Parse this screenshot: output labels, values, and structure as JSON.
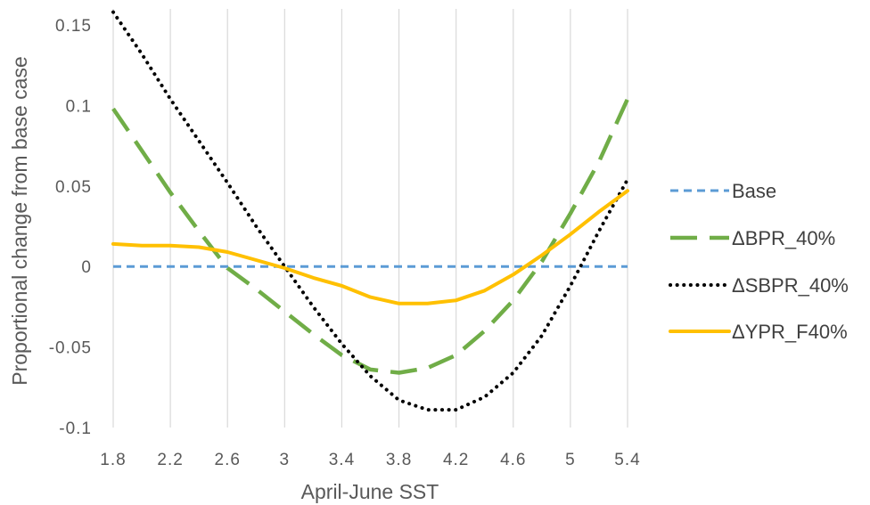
{
  "chart_data": {
    "type": "line",
    "title": "",
    "xlabel": "April-June SST",
    "ylabel": "Proportional change from base case",
    "xlim": [
      1.8,
      5.4
    ],
    "ylim": [
      -0.1,
      0.16
    ],
    "xticks": [
      "1.8",
      "2.2",
      "2.6",
      "3",
      "3.4",
      "3.8",
      "4.2",
      "4.6",
      "5",
      "5.4"
    ],
    "yticks": [
      "0.15",
      "0.1",
      "0.05",
      "0",
      "-0.05",
      "-0.1"
    ],
    "grid": "vertical",
    "legend_position": "right",
    "x": [
      1.8,
      2.0,
      2.2,
      2.4,
      2.6,
      2.8,
      3.0,
      3.2,
      3.4,
      3.6,
      3.8,
      4.0,
      4.2,
      4.4,
      4.6,
      4.8,
      5.0,
      5.2,
      5.4
    ],
    "series": [
      {
        "name": "Base",
        "color": "#5b9bd5",
        "dash": "short-dash",
        "values": [
          0,
          0,
          0,
          0,
          0,
          0,
          0,
          0,
          0,
          0,
          0,
          0,
          0,
          0,
          0,
          0,
          0,
          0,
          0
        ]
      },
      {
        "name": "ΔBPR_40%",
        "color": "#70ad47",
        "dash": "long-dash",
        "values": [
          0.098,
          0.072,
          0.046,
          0.022,
          -0.001,
          -0.014,
          -0.028,
          -0.042,
          -0.055,
          -0.064,
          -0.066,
          -0.063,
          -0.055,
          -0.04,
          -0.021,
          0.003,
          0.033,
          0.065,
          0.104
        ]
      },
      {
        "name": "ΔSBPR_40%",
        "color": "#000000",
        "dash": "dotted",
        "values": [
          0.158,
          0.132,
          0.104,
          0.078,
          0.052,
          0.025,
          0.0,
          -0.025,
          -0.048,
          -0.068,
          -0.083,
          -0.089,
          -0.089,
          -0.081,
          -0.066,
          -0.043,
          -0.012,
          0.022,
          0.054
        ]
      },
      {
        "name": "ΔYPR_F40%",
        "color": "#ffc000",
        "dash": "solid",
        "values": [
          0.014,
          0.013,
          0.013,
          0.012,
          0.009,
          0.004,
          -0.001,
          -0.007,
          -0.012,
          -0.019,
          -0.023,
          -0.023,
          -0.021,
          -0.015,
          -0.005,
          0.007,
          0.02,
          0.034,
          0.047
        ]
      }
    ]
  }
}
